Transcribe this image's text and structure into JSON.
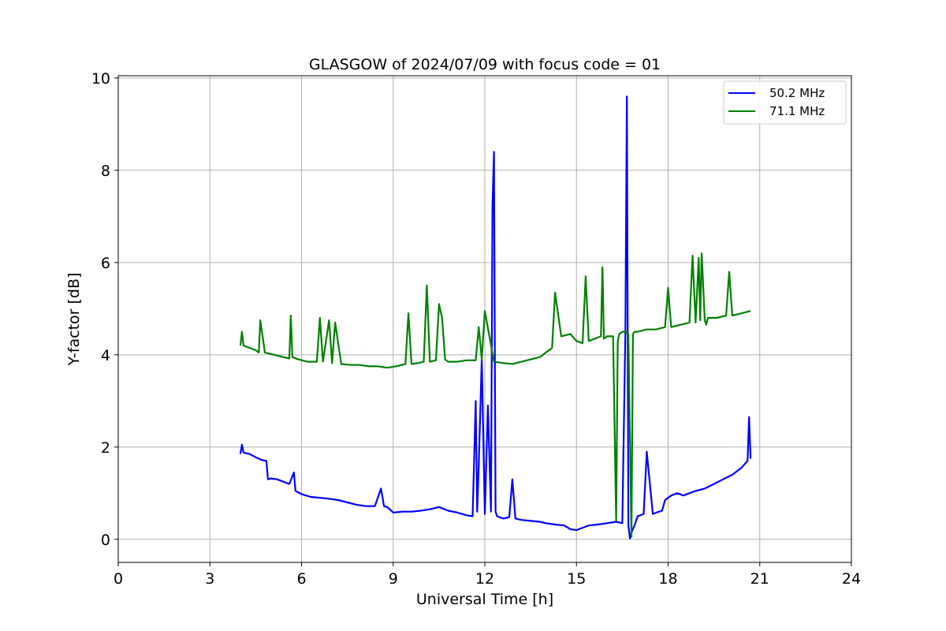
{
  "chart_data": {
    "type": "line",
    "title": "GLASGOW of 2024/07/09 with focus code = 01",
    "xlabel": "Universal Time [h]",
    "ylabel": "Y-factor [dB]",
    "xlim": [
      0,
      24
    ],
    "ylim": [
      -0.5,
      10.05
    ],
    "xticks": [
      0,
      3,
      6,
      9,
      12,
      15,
      18,
      21,
      24
    ],
    "yticks": [
      0,
      2,
      4,
      6,
      8,
      10
    ],
    "grid": true,
    "legend_position": "top-right",
    "series": [
      {
        "name": "50.2 MHz",
        "color": "#0000ff",
        "x": [
          4.0,
          4.05,
          4.1,
          4.3,
          4.5,
          4.7,
          4.85,
          4.9,
          5.0,
          5.2,
          5.4,
          5.6,
          5.75,
          5.8,
          6.0,
          6.3,
          6.6,
          6.9,
          7.2,
          7.5,
          7.8,
          8.1,
          8.4,
          8.6,
          8.7,
          8.8,
          9.0,
          9.3,
          9.6,
          9.9,
          10.2,
          10.5,
          10.8,
          11.1,
          11.4,
          11.6,
          11.7,
          11.75,
          11.8,
          11.9,
          12.0,
          12.1,
          12.2,
          12.25,
          12.3,
          12.35,
          12.4,
          12.6,
          12.8,
          12.9,
          13.0,
          13.2,
          13.5,
          13.8,
          14.0,
          14.3,
          14.6,
          14.8,
          15.0,
          15.2,
          15.4,
          15.7,
          16.0,
          16.3,
          16.5,
          16.6,
          16.65,
          16.7,
          16.75,
          16.8,
          16.9,
          17.0,
          17.2,
          17.3,
          17.5,
          17.7,
          17.8,
          17.9,
          18.1,
          18.3,
          18.5,
          18.7,
          18.9,
          19.2,
          19.5,
          19.8,
          20.1,
          20.4,
          20.6,
          20.65,
          20.7
        ],
        "y": [
          1.85,
          2.05,
          1.88,
          1.85,
          1.78,
          1.72,
          1.7,
          1.3,
          1.32,
          1.3,
          1.25,
          1.2,
          1.45,
          1.05,
          0.98,
          0.92,
          0.9,
          0.88,
          0.85,
          0.8,
          0.75,
          0.72,
          0.72,
          1.1,
          0.72,
          0.7,
          0.58,
          0.6,
          0.6,
          0.62,
          0.65,
          0.7,
          0.62,
          0.58,
          0.52,
          0.5,
          3.0,
          0.6,
          1.6,
          3.9,
          0.55,
          2.9,
          0.6,
          7.2,
          8.4,
          0.6,
          0.5,
          0.45,
          0.48,
          1.3,
          0.45,
          0.42,
          0.4,
          0.38,
          0.35,
          0.32,
          0.3,
          0.22,
          0.2,
          0.25,
          0.3,
          0.32,
          0.35,
          0.38,
          0.35,
          4.5,
          9.6,
          0.3,
          0.02,
          0.15,
          0.3,
          0.5,
          0.55,
          1.9,
          0.55,
          0.6,
          0.62,
          0.85,
          0.95,
          1.0,
          0.95,
          1.0,
          1.05,
          1.1,
          1.2,
          1.3,
          1.4,
          1.55,
          1.7,
          2.65,
          1.75
        ]
      },
      {
        "name": "71.1 MHz",
        "color": "#008000",
        "x": [
          4.0,
          4.05,
          4.1,
          4.3,
          4.5,
          4.6,
          4.65,
          4.8,
          5.1,
          5.4,
          5.6,
          5.65,
          5.7,
          5.9,
          6.2,
          6.5,
          6.6,
          6.7,
          6.9,
          7.0,
          7.1,
          7.3,
          7.6,
          7.9,
          8.2,
          8.5,
          8.8,
          9.1,
          9.4,
          9.5,
          9.6,
          9.8,
          10.0,
          10.1,
          10.2,
          10.4,
          10.5,
          10.6,
          10.7,
          10.8,
          11.1,
          11.4,
          11.7,
          11.8,
          11.9,
          12.0,
          12.3,
          12.6,
          12.9,
          13.2,
          13.5,
          13.8,
          14.0,
          14.2,
          14.3,
          14.5,
          14.8,
          15.0,
          15.2,
          15.3,
          15.4,
          15.6,
          15.8,
          15.85,
          15.9,
          16.0,
          16.2,
          16.3,
          16.35,
          16.4,
          16.5,
          16.6,
          16.7,
          16.8,
          16.85,
          16.9,
          17.0,
          17.3,
          17.6,
          17.9,
          18.0,
          18.1,
          18.4,
          18.7,
          18.8,
          18.9,
          19.0,
          19.05,
          19.1,
          19.2,
          19.25,
          19.3,
          19.6,
          19.9,
          20.0,
          20.1,
          20.4,
          20.7
        ],
        "y": [
          4.2,
          4.5,
          4.2,
          4.15,
          4.1,
          4.05,
          4.75,
          4.05,
          4.0,
          3.95,
          3.92,
          4.85,
          3.95,
          3.9,
          3.85,
          3.85,
          4.8,
          3.85,
          4.75,
          3.82,
          4.7,
          3.8,
          3.78,
          3.78,
          3.75,
          3.75,
          3.72,
          3.75,
          3.8,
          4.9,
          3.8,
          3.82,
          3.85,
          5.5,
          3.85,
          3.88,
          5.1,
          4.8,
          3.9,
          3.85,
          3.85,
          3.88,
          3.88,
          4.6,
          3.9,
          4.95,
          3.85,
          3.82,
          3.8,
          3.85,
          3.9,
          3.95,
          4.05,
          4.15,
          5.35,
          4.4,
          4.45,
          4.3,
          4.25,
          5.7,
          4.3,
          4.35,
          4.4,
          5.9,
          4.35,
          4.4,
          4.4,
          0.4,
          4.3,
          4.45,
          4.5,
          4.5,
          4.45,
          0.05,
          4.45,
          4.5,
          4.5,
          4.55,
          4.55,
          4.6,
          5.45,
          4.6,
          4.65,
          4.7,
          6.15,
          4.7,
          6.1,
          4.75,
          6.2,
          4.75,
          4.65,
          4.8,
          4.8,
          4.85,
          5.8,
          4.85,
          4.9,
          4.95
        ]
      }
    ]
  }
}
